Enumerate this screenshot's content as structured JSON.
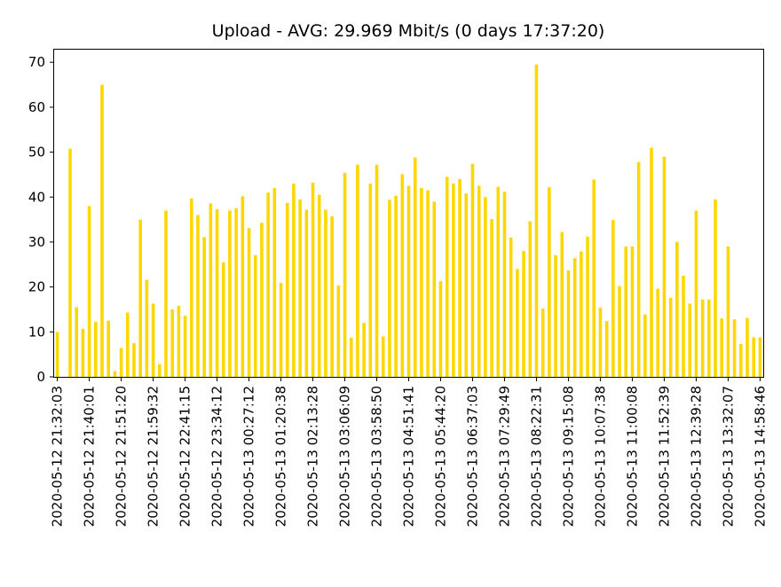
{
  "chart_data": {
    "type": "bar",
    "title": "Upload - AVG: 29.969 Mbit/s (0 days 17:37:20)",
    "xlabel": "",
    "ylabel": "",
    "ylim": [
      0,
      73
    ],
    "yticks": [
      0,
      10,
      20,
      30,
      40,
      50,
      60,
      70
    ],
    "bar_color": "#ffd700",
    "values": [
      10,
      0,
      50.8,
      15.5,
      10.7,
      38,
      12.2,
      65,
      12.5,
      1.3,
      6.4,
      14.3,
      7.5,
      35,
      21.6,
      16.3,
      2.8,
      37,
      15,
      15.8,
      13.6,
      39.7,
      36,
      31.1,
      38.6,
      37.3,
      25.5,
      37,
      37.5,
      40.2,
      33.1,
      27.1,
      34.3,
      41,
      42,
      20.9,
      38.7,
      43,
      39.5,
      37.2,
      43.2,
      40.5,
      37.2,
      35.7,
      20.3,
      45.4,
      8.7,
      47.2,
      12,
      43,
      47.2,
      9,
      39.4,
      40.3,
      45.1,
      42.5,
      48.8,
      42,
      41.5,
      39,
      21.3,
      44.5,
      43,
      44,
      40.8,
      47.4,
      42.5,
      40,
      35.1,
      42.3,
      41.2,
      31,
      24,
      28,
      34.6,
      69.5,
      15.2,
      42.2,
      27.1,
      32.2,
      23.7,
      26.4,
      27.9,
      31.2,
      43.9,
      15.4,
      12.4,
      34.9,
      20.2,
      29,
      29,
      47.8,
      13.9,
      51,
      19.6,
      49,
      17.6,
      30,
      22.5,
      16.3,
      37,
      17.2,
      17.2,
      39.5,
      13,
      29,
      12.8,
      7.3,
      13.1,
      8.8,
      8.8
    ],
    "xtick_labels": [
      "2020-05-12 21:32:03",
      "2020-05-12 21:40:01",
      "2020-05-12 21:51:20",
      "2020-05-12 21:59:32",
      "2020-05-12 22:41:15",
      "2020-05-12 23:34:12",
      "2020-05-13 00:27:12",
      "2020-05-13 01:20:38",
      "2020-05-13 02:13:28",
      "2020-05-13 03:06:09",
      "2020-05-13 03:58:50",
      "2020-05-13 04:51:41",
      "2020-05-13 05:44:20",
      "2020-05-13 06:37:03",
      "2020-05-13 07:29:49",
      "2020-05-13 08:22:31",
      "2020-05-13 09:15:08",
      "2020-05-13 10:07:38",
      "2020-05-13 11:00:08",
      "2020-05-13 11:52:39",
      "2020-05-13 12:39:28",
      "2020-05-13 13:32:07",
      "2020-05-13 14:58:46"
    ],
    "xtick_every": 5,
    "grid": false,
    "legend": "none"
  }
}
